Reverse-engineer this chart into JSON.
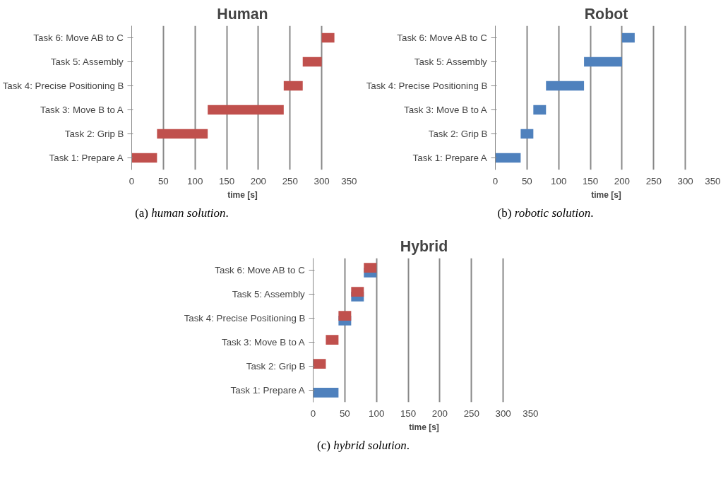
{
  "chart_data": [
    {
      "type": "bar",
      "orientation": "horizontal",
      "title": "Human",
      "xlabel": "time [s]",
      "categories": [
        "Task 6: Move AB to C",
        "Task 5: Assembly",
        "Task 4: Precise Positioning B",
        "Task 3: Move B to A",
        "Task 2: Grip B",
        "Task 1: Prepare A"
      ],
      "xlim": [
        0,
        350
      ],
      "xticks": [
        0,
        50,
        100,
        150,
        200,
        250,
        300,
        350
      ],
      "grid": "x",
      "annotations": [
        "(a) human solution."
      ],
      "series": [
        {
          "color": "#c0504d",
          "base": [
            300,
            270,
            240,
            120,
            40,
            0
          ],
          "values": [
            20,
            30,
            30,
            120,
            80,
            40
          ]
        }
      ]
    },
    {
      "type": "bar",
      "orientation": "horizontal",
      "title": "Robot",
      "xlabel": "time [s]",
      "categories": [
        "Task 6: Move AB to C",
        "Task 5: Assembly",
        "Task 4: Precise Positioning B",
        "Task 3: Move B to A",
        "Task 2: Grip B",
        "Task 1: Prepare A"
      ],
      "xlim": [
        0,
        350
      ],
      "xticks": [
        0,
        50,
        100,
        150,
        200,
        250,
        300,
        350
      ],
      "grid": "x",
      "annotations": [
        "(b) robotic solution."
      ],
      "series": [
        {
          "color": "#4f81bd",
          "base": [
            200,
            140,
            80,
            60,
            40,
            0
          ],
          "values": [
            20,
            60,
            60,
            20,
            20,
            40
          ]
        }
      ]
    },
    {
      "type": "bar",
      "orientation": "horizontal",
      "title": "Hybrid",
      "xlabel": "time [s]",
      "categories": [
        "Task 6: Move AB to C",
        "Task 5: Assembly",
        "Task 4: Precise Positioning B",
        "Task 3: Move B to A",
        "Task 2: Grip B",
        "Task 1: Prepare A"
      ],
      "xlim": [
        0,
        350
      ],
      "xticks": [
        0,
        50,
        100,
        150,
        200,
        250,
        300,
        350
      ],
      "grid": "x",
      "annotations": [
        "(c) hybrid solution."
      ],
      "series": [
        {
          "color": "#4f81bd",
          "base": [
            80,
            60,
            40,
            null,
            null,
            0
          ],
          "values": [
            20,
            20,
            20,
            null,
            null,
            40
          ]
        },
        {
          "color": "#c0504d",
          "base": [
            80,
            60,
            40,
            20,
            0,
            null
          ],
          "values": [
            20,
            20,
            20,
            20,
            20,
            null
          ]
        }
      ]
    }
  ]
}
